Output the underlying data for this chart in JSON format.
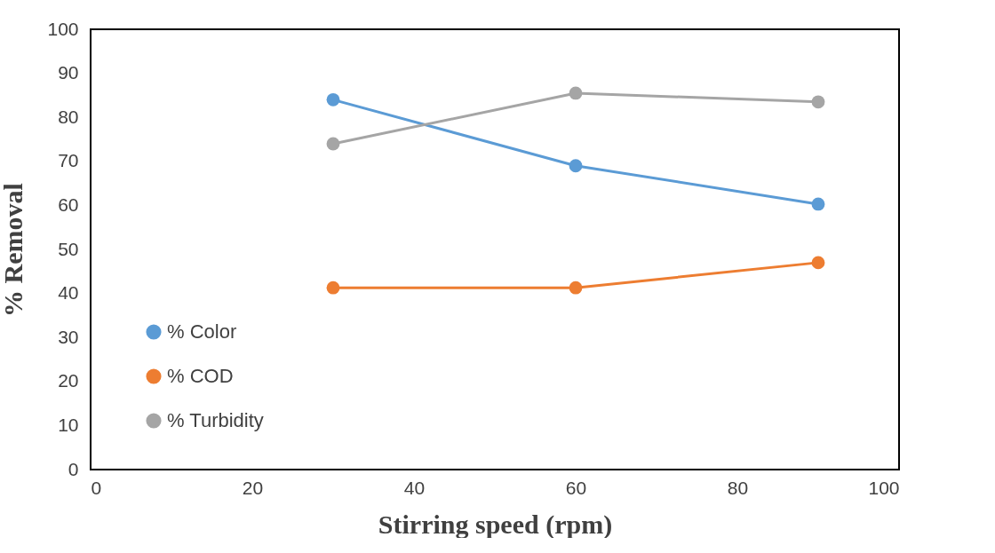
{
  "chart_data": {
    "type": "line",
    "xlabel": "Stirring speed (rpm)",
    "ylabel": "% Removal",
    "x": [
      30,
      60,
      90
    ],
    "series": [
      {
        "name": "% Color",
        "color": "#5b9bd5",
        "values": [
          84,
          69,
          60.3
        ]
      },
      {
        "name": "% COD",
        "color": "#ed7d31",
        "values": [
          41.3,
          41.3,
          47
        ]
      },
      {
        "name": "% Turbidity",
        "color": "#a5a5a5",
        "values": [
          74,
          85.5,
          83.5
        ]
      }
    ],
    "xlim": [
      0,
      100
    ],
    "xticks": [
      0,
      20,
      40,
      60,
      80,
      100
    ],
    "ylim": [
      0,
      100
    ],
    "yticks": [
      0,
      10,
      20,
      30,
      40,
      50,
      60,
      70,
      80,
      90,
      100
    ],
    "grid": false,
    "legend": "bottom left",
    "marker": "circle",
    "line_style": "solid"
  }
}
